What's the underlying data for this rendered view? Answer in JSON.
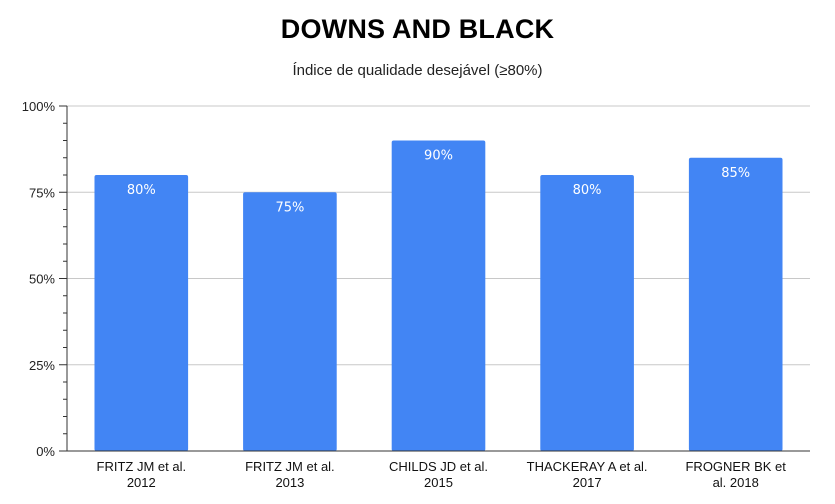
{
  "chart_data": {
    "type": "bar",
    "title": "DOWNS AND BLACK",
    "subtitle": "Índice de qualidade desejável (≥80%)",
    "categories": [
      [
        "FRITZ JM et al.",
        "2012"
      ],
      [
        "FRITZ JM et al.",
        "2013"
      ],
      [
        "CHILDS JD et al.",
        "2015"
      ],
      [
        "THACKERAY A et al.",
        "2017"
      ],
      [
        "FROGNER BK et",
        "al. 2018"
      ]
    ],
    "values": [
      80,
      75,
      90,
      80,
      85
    ],
    "data_labels": [
      "80%",
      "75%",
      "90%",
      "80%",
      "85%"
    ],
    "ylim": [
      0,
      100
    ],
    "yticks": [
      0,
      25,
      50,
      75,
      100
    ],
    "ytick_labels": [
      "0%",
      "25%",
      "50%",
      "75%",
      "100%"
    ],
    "grid": true,
    "legend": "none",
    "bar_color": "#4285f4"
  }
}
